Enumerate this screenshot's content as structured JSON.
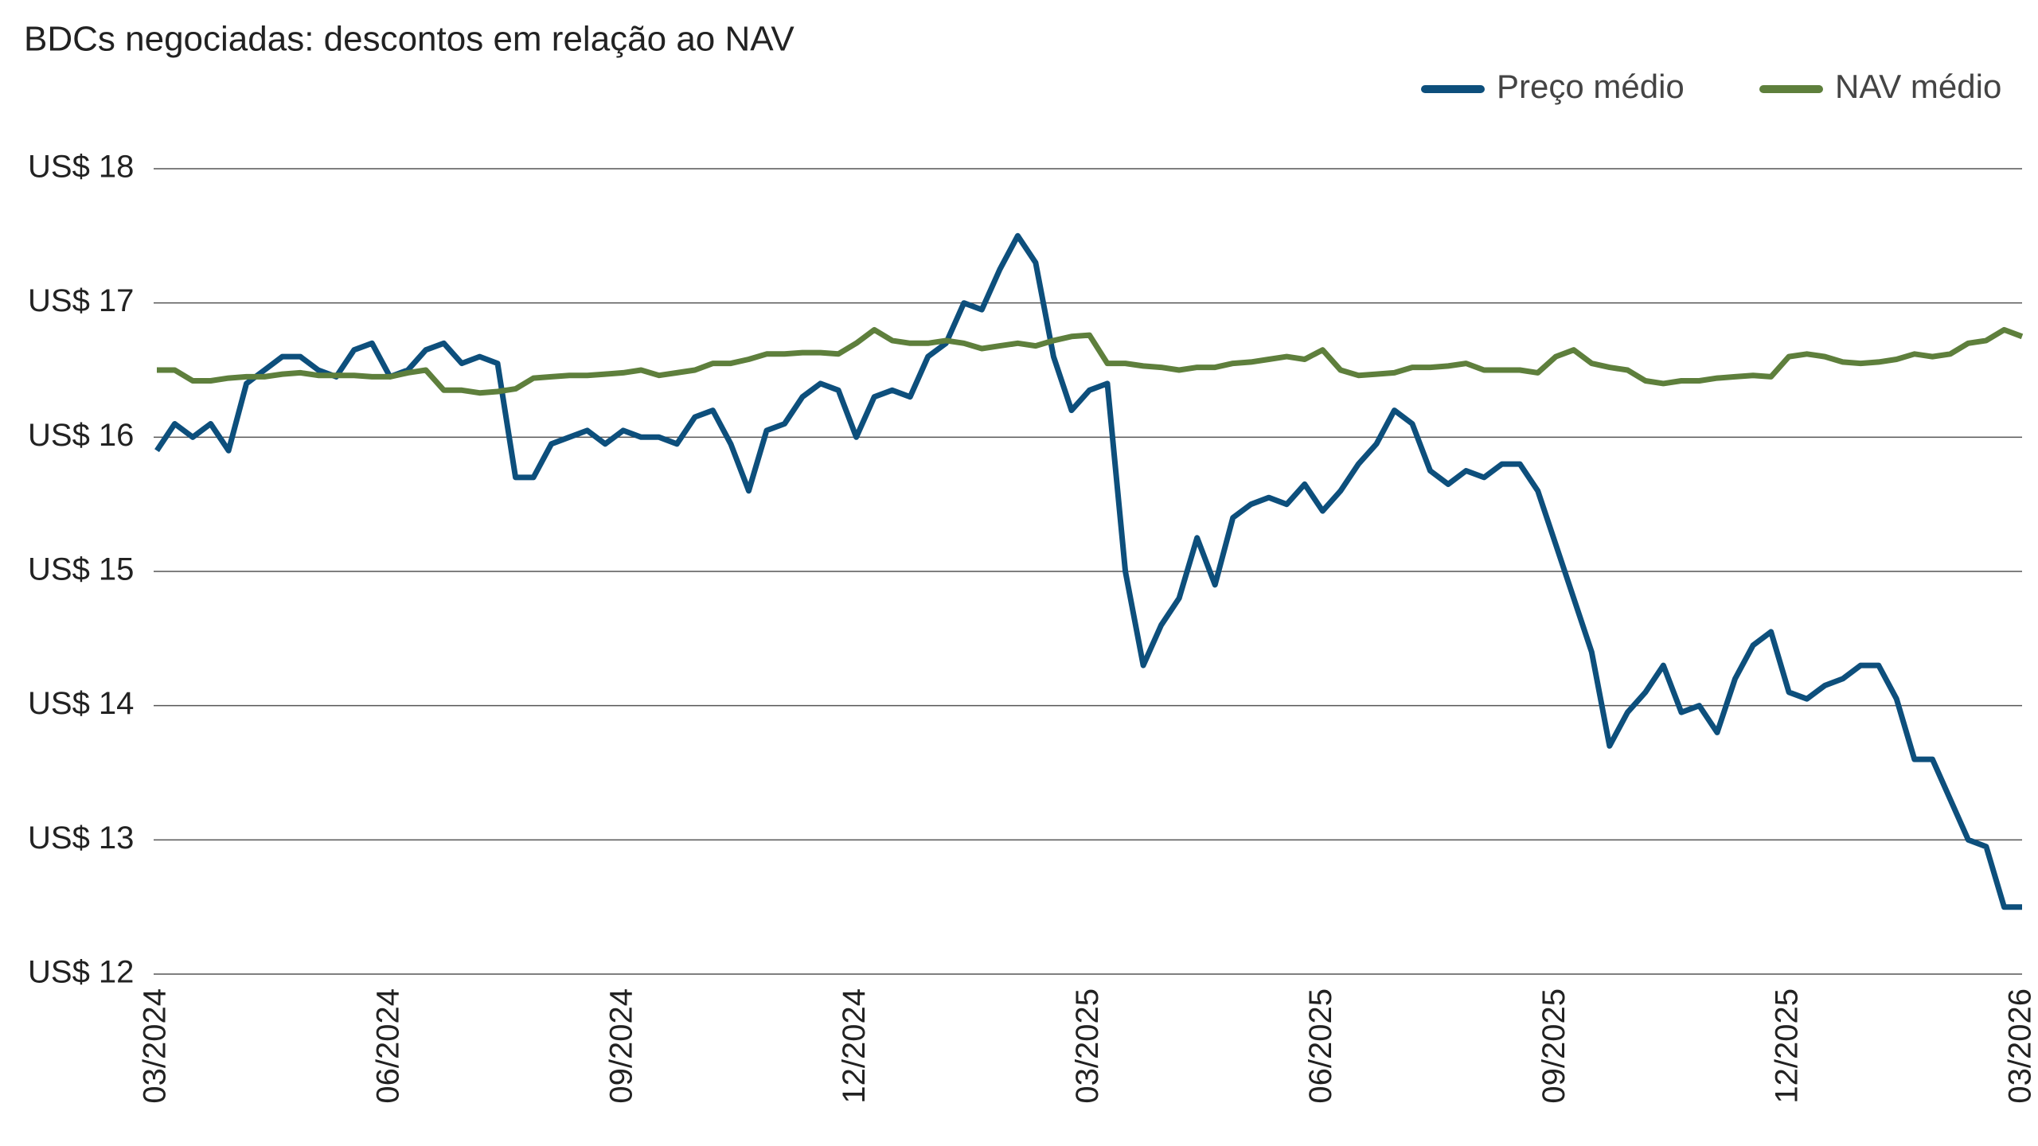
{
  "chart_data": {
    "type": "line",
    "title": "BDCs negociadas: descontos em relação ao NAV",
    "categories": [
      "03/2024",
      null,
      null,
      null,
      null,
      null,
      null,
      null,
      null,
      null,
      null,
      null,
      null,
      "06/2024",
      null,
      null,
      null,
      null,
      null,
      null,
      null,
      null,
      null,
      null,
      null,
      null,
      "09/2024",
      null,
      null,
      null,
      null,
      null,
      null,
      null,
      null,
      null,
      null,
      null,
      null,
      "12/2024",
      null,
      null,
      null,
      null,
      null,
      null,
      null,
      null,
      null,
      null,
      null,
      null,
      "03/2025",
      null,
      null,
      null,
      null,
      null,
      null,
      null,
      null,
      null,
      null,
      null,
      null,
      "06/2025",
      null,
      null,
      null,
      null,
      null,
      null,
      null,
      null,
      null,
      null,
      null,
      null,
      "09/2025",
      null,
      null,
      null,
      null,
      null,
      null,
      null,
      null,
      null,
      null,
      null,
      null,
      "12/2025",
      null,
      null,
      null,
      null,
      null,
      null,
      null,
      null,
      null,
      null,
      null,
      null,
      "03/2026"
    ],
    "series": [
      {
        "name": "Preço médio",
        "color": "#0d4f7c",
        "values": [
          15.9,
          16.1,
          16.0,
          16.1,
          15.9,
          16.4,
          16.5,
          16.6,
          16.6,
          16.5,
          16.45,
          16.65,
          16.7,
          16.45,
          16.5,
          16.65,
          16.7,
          16.55,
          16.6,
          16.55,
          15.7,
          15.7,
          15.95,
          16.0,
          16.05,
          15.95,
          16.05,
          16.0,
          16.0,
          15.95,
          16.15,
          16.2,
          15.95,
          15.6,
          16.05,
          16.1,
          16.3,
          16.4,
          16.35,
          16.0,
          16.3,
          16.35,
          16.3,
          16.6,
          16.7,
          17.0,
          16.95,
          17.25,
          17.5,
          17.3,
          16.6,
          16.2,
          16.35,
          16.4,
          15.0,
          14.3,
          14.6,
          14.8,
          15.25,
          14.9,
          15.4,
          15.5,
          15.55,
          15.5,
          15.65,
          15.45,
          15.6,
          15.8,
          15.95,
          16.2,
          16.1,
          15.75,
          15.65,
          15.75,
          15.7,
          15.8,
          15.8,
          15.6,
          15.2,
          14.8,
          14.4,
          13.7,
          13.95,
          14.1,
          14.3,
          13.95,
          14.0,
          13.8,
          14.2,
          14.45,
          14.55,
          14.1,
          14.05,
          14.15,
          14.2,
          14.3,
          14.3,
          14.05,
          13.6,
          13.6,
          13.3,
          13.0,
          12.95,
          12.5,
          12.5
        ]
      },
      {
        "name": "NAV médio",
        "color": "#5e7f3c",
        "values": [
          16.5,
          16.5,
          16.42,
          16.42,
          16.44,
          16.45,
          16.45,
          16.47,
          16.48,
          16.46,
          16.46,
          16.46,
          16.45,
          16.45,
          16.48,
          16.5,
          16.35,
          16.35,
          16.33,
          16.34,
          16.36,
          16.44,
          16.45,
          16.46,
          16.46,
          16.47,
          16.48,
          16.5,
          16.46,
          16.48,
          16.5,
          16.55,
          16.55,
          16.58,
          16.62,
          16.62,
          16.63,
          16.63,
          16.62,
          16.7,
          16.8,
          16.72,
          16.7,
          16.7,
          16.72,
          16.7,
          16.66,
          16.68,
          16.7,
          16.68,
          16.72,
          16.75,
          16.76,
          16.55,
          16.55,
          16.53,
          16.52,
          16.5,
          16.52,
          16.52,
          16.55,
          16.56,
          16.58,
          16.6,
          16.58,
          16.65,
          16.5,
          16.46,
          16.47,
          16.48,
          16.52,
          16.52,
          16.53,
          16.55,
          16.5,
          16.5,
          16.5,
          16.48,
          16.6,
          16.65,
          16.55,
          16.52,
          16.5,
          16.42,
          16.4,
          16.42,
          16.42,
          16.44,
          16.45,
          16.46,
          16.45,
          16.6,
          16.62,
          16.6,
          16.56,
          16.55,
          16.56,
          16.58,
          16.62,
          16.6,
          16.62,
          16.7,
          16.72,
          16.8,
          16.75
        ]
      }
    ],
    "ylim": [
      12,
      18
    ],
    "yticks": [
      {
        "value": 12,
        "label": "US$ 12"
      },
      {
        "value": 13,
        "label": "US$ 13"
      },
      {
        "value": 14,
        "label": "US$ 14"
      },
      {
        "value": 15,
        "label": "US$ 15"
      },
      {
        "value": 16,
        "label": "US$ 16"
      },
      {
        "value": 17,
        "label": "US$ 17"
      },
      {
        "value": 18,
        "label": "US$ 18"
      }
    ],
    "grid": true,
    "legend": "top-right"
  }
}
